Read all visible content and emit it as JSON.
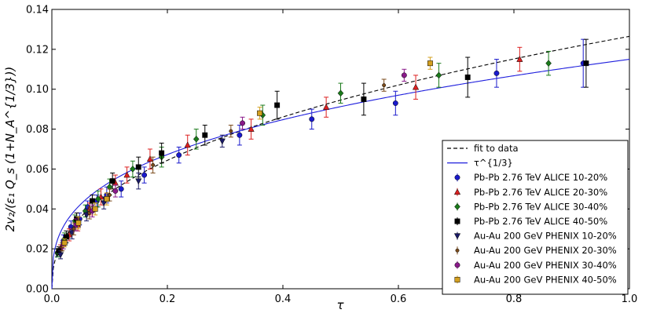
{
  "chart_data": {
    "type": "scatter",
    "title": "",
    "xlabel": "τ",
    "ylabel": "2v₂/(ε₁ Q_s (1+N_A^{1/3}))",
    "xlim": [
      0.0,
      1.0
    ],
    "ylim": [
      0.0,
      0.14
    ],
    "x_ticks": [
      "0.0",
      "0.2",
      "0.4",
      "0.6",
      "0.8",
      "1.0"
    ],
    "y_ticks": [
      "0.00",
      "0.02",
      "0.04",
      "0.06",
      "0.08",
      "0.10",
      "0.12",
      "0.14"
    ],
    "grid": false,
    "legend_position": "lower-right",
    "curves": [
      {
        "name": "fit to data",
        "color": "#000000",
        "style": "dashed",
        "form": "power",
        "coef": 0.1265,
        "exponent": 0.42
      },
      {
        "name": "τ^{1/3}",
        "color": "#1f1fdd",
        "style": "solid",
        "form": "power",
        "coef": 0.115,
        "exponent": 0.3333
      }
    ],
    "series": [
      {
        "name": "Pb-Pb 2.76 TeV ALICE 10-20%",
        "color": "#1a1acc",
        "marker": "circle",
        "points": [
          [
            0.01,
            0.018,
            0.002
          ],
          [
            0.02,
            0.024,
            0.003
          ],
          [
            0.033,
            0.031,
            0.003
          ],
          [
            0.048,
            0.035,
            0.003
          ],
          [
            0.062,
            0.041,
            0.003
          ],
          [
            0.078,
            0.044,
            0.003
          ],
          [
            0.095,
            0.047,
            0.004
          ],
          [
            0.12,
            0.05,
            0.004
          ],
          [
            0.16,
            0.057,
            0.004
          ],
          [
            0.22,
            0.067,
            0.004
          ],
          [
            0.325,
            0.077,
            0.005
          ],
          [
            0.45,
            0.085,
            0.005
          ],
          [
            0.595,
            0.093,
            0.006
          ],
          [
            0.77,
            0.108,
            0.007
          ],
          [
            0.92,
            0.113,
            0.012
          ]
        ]
      },
      {
        "name": "Pb-Pb 2.76 TeV ALICE 20-30%",
        "color": "#dd2020",
        "marker": "triangle",
        "points": [
          [
            0.015,
            0.02,
            0.002
          ],
          [
            0.03,
            0.027,
            0.003
          ],
          [
            0.045,
            0.032,
            0.003
          ],
          [
            0.065,
            0.04,
            0.003
          ],
          [
            0.085,
            0.046,
            0.004
          ],
          [
            0.11,
            0.053,
            0.004
          ],
          [
            0.13,
            0.057,
            0.004
          ],
          [
            0.17,
            0.065,
            0.005
          ],
          [
            0.235,
            0.072,
            0.005
          ],
          [
            0.345,
            0.08,
            0.005
          ],
          [
            0.475,
            0.091,
            0.005
          ],
          [
            0.63,
            0.101,
            0.006
          ],
          [
            0.81,
            0.115,
            0.006
          ]
        ]
      },
      {
        "name": "Pb-Pb 2.76 TeV ALICE 30-40%",
        "color": "#1a7a1a",
        "marker": "diamond",
        "points": [
          [
            0.01,
            0.018,
            0.002
          ],
          [
            0.022,
            0.025,
            0.003
          ],
          [
            0.04,
            0.034,
            0.003
          ],
          [
            0.058,
            0.039,
            0.003
          ],
          [
            0.08,
            0.045,
            0.004
          ],
          [
            0.1,
            0.051,
            0.004
          ],
          [
            0.14,
            0.06,
            0.004
          ],
          [
            0.19,
            0.066,
            0.005
          ],
          [
            0.25,
            0.075,
            0.005
          ],
          [
            0.365,
            0.087,
            0.005
          ],
          [
            0.5,
            0.098,
            0.005
          ],
          [
            0.67,
            0.107,
            0.006
          ],
          [
            0.86,
            0.113,
            0.006
          ]
        ]
      },
      {
        "name": "Pb-Pb 2.76 TeV ALICE 40-50%",
        "color": "#000000",
        "marker": "square",
        "points": [
          [
            0.012,
            0.019,
            0.002
          ],
          [
            0.025,
            0.026,
            0.003
          ],
          [
            0.043,
            0.035,
            0.003
          ],
          [
            0.07,
            0.044,
            0.003
          ],
          [
            0.105,
            0.054,
            0.004
          ],
          [
            0.15,
            0.061,
            0.005
          ],
          [
            0.19,
            0.068,
            0.005
          ],
          [
            0.265,
            0.077,
            0.005
          ],
          [
            0.39,
            0.092,
            0.007
          ],
          [
            0.54,
            0.095,
            0.008
          ],
          [
            0.72,
            0.106,
            0.01
          ],
          [
            0.925,
            0.113,
            0.012
          ]
        ]
      },
      {
        "name": "Au-Au 200 GeV PHENIX 10-20%",
        "color": "#1a1a66",
        "marker": "triangle-down",
        "points": [
          [
            0.015,
            0.017,
            0.002
          ],
          [
            0.035,
            0.028,
            0.003
          ],
          [
            0.06,
            0.037,
            0.003
          ],
          [
            0.09,
            0.043,
            0.003
          ],
          [
            0.15,
            0.054,
            0.004
          ],
          [
            0.295,
            0.074,
            0.003
          ]
        ]
      },
      {
        "name": "Au-Au 200 GeV PHENIX 20-30%",
        "color": "#7a4a1a",
        "marker": "circle-small",
        "points": [
          [
            0.018,
            0.021,
            0.002
          ],
          [
            0.038,
            0.03,
            0.003
          ],
          [
            0.065,
            0.038,
            0.003
          ],
          [
            0.1,
            0.047,
            0.003
          ],
          [
            0.175,
            0.062,
            0.004
          ],
          [
            0.31,
            0.079,
            0.003
          ],
          [
            0.575,
            0.102,
            0.003
          ]
        ]
      },
      {
        "name": "Au-Au 200 GeV PHENIX 30-40%",
        "color": "#8a1a8a",
        "marker": "circle",
        "points": [
          [
            0.02,
            0.022,
            0.002
          ],
          [
            0.042,
            0.032,
            0.003
          ],
          [
            0.07,
            0.039,
            0.003
          ],
          [
            0.11,
            0.049,
            0.003
          ],
          [
            0.33,
            0.083,
            0.003
          ],
          [
            0.61,
            0.107,
            0.003
          ]
        ]
      },
      {
        "name": "Au-Au 200 GeV PHENIX 40-50%",
        "color": "#d4a020",
        "marker": "square",
        "points": [
          [
            0.022,
            0.023,
            0.002
          ],
          [
            0.046,
            0.033,
            0.003
          ],
          [
            0.075,
            0.04,
            0.003
          ],
          [
            0.095,
            0.045,
            0.003
          ],
          [
            0.36,
            0.088,
            0.003
          ],
          [
            0.655,
            0.113,
            0.003
          ]
        ]
      }
    ]
  }
}
